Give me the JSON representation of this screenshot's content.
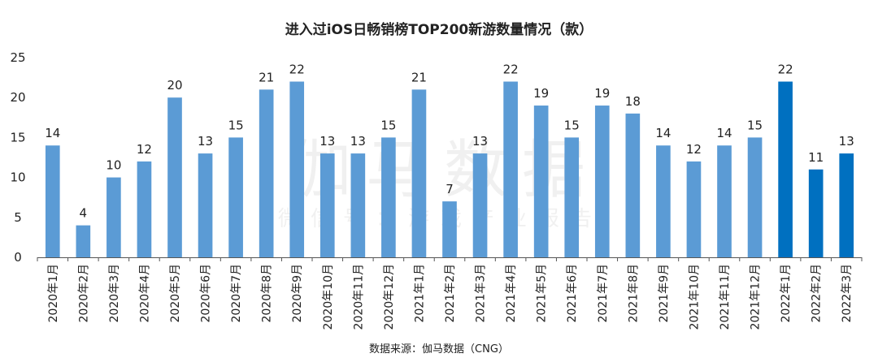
{
  "chart_data": {
    "type": "bar",
    "title": "进入过iOS日畅销榜TOP200新游数量情况（款）",
    "categories": [
      "2020年1月",
      "2020年2月",
      "2020年3月",
      "2020年4月",
      "2020年5月",
      "2020年6月",
      "2020年7月",
      "2020年8月",
      "2020年9月",
      "2020年10月",
      "2020年11月",
      "2020年12月",
      "2021年1月",
      "2021年2月",
      "2021年3月",
      "2021年4月",
      "2021年5月",
      "2021年6月",
      "2021年7月",
      "2021年8月",
      "2021年9月",
      "2021年10月",
      "2021年11月",
      "2021年12月",
      "2022年1月",
      "2022年2月",
      "2022年3月"
    ],
    "values": [
      14,
      4,
      10,
      12,
      20,
      13,
      15,
      21,
      22,
      13,
      13,
      15,
      21,
      7,
      13,
      22,
      19,
      15,
      19,
      18,
      14,
      12,
      14,
      15,
      22,
      11,
      13
    ],
    "highlight_from_index": 24,
    "ylim": [
      0,
      25
    ],
    "yticks": [
      0,
      5,
      10,
      15,
      20,
      25
    ],
    "xlabel": "",
    "ylabel": "",
    "grid": false,
    "legend": "none",
    "colors": {
      "bar": "#5B9BD5",
      "highlight": "#0070C0",
      "axis": "#555555"
    }
  },
  "watermark": {
    "main": "伽马数据",
    "sub": "微信号：游戏产业报告"
  },
  "source": "数据来源：伽马数据（CNG）"
}
